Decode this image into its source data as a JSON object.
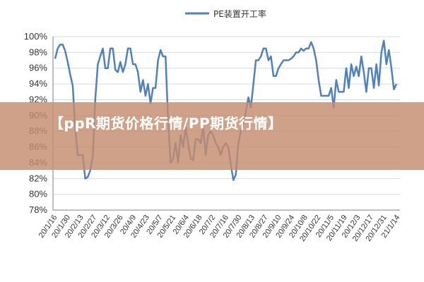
{
  "chart_data": {
    "type": "line",
    "legend": {
      "label": "PE装置开工率",
      "position": "top-center"
    },
    "series_color": "#4F81BD",
    "ylim": [
      78,
      100
    ],
    "yticks": [
      "78%",
      "80%",
      "82%",
      "84%",
      "86%",
      "88%",
      "90%",
      "92%",
      "94%",
      "96%",
      "98%",
      "100%"
    ],
    "x_tick_labels": [
      "20/1/16",
      "20/1/30",
      "20/2/13",
      "20/2/27",
      "20/3/12",
      "20/3/26",
      "20/4/9",
      "20/4/23",
      "20/5/7",
      "20/5/21",
      "20/6/4",
      "20/6/18",
      "20/7/2",
      "20/7/16",
      "20/7/30",
      "20/8/13",
      "20/8/27",
      "20/9/10",
      "20/9/24",
      "20/10/8",
      "20/10/22",
      "20/11/5",
      "20/11/19",
      "20/12/3",
      "20/12/17",
      "20/12/31",
      "21/1/14"
    ],
    "values": [
      97.2,
      98.5,
      99,
      99,
      98.2,
      96.8,
      95.2,
      93.8,
      88.5,
      85,
      85,
      85,
      82,
      82.2,
      83,
      84.8,
      92,
      96.5,
      97.5,
      98.5,
      96,
      96,
      98.5,
      98.5,
      95.8,
      95.5,
      96.8,
      95.5,
      96.5,
      98.5,
      98.5,
      96.5,
      96.5,
      95.5,
      93,
      94.5,
      92.5,
      94,
      91.5,
      93.5,
      93.5,
      97,
      98.3,
      97.5,
      97.5,
      89.5,
      84,
      84.5,
      86.5,
      84,
      87.5,
      86,
      88.5,
      86.5,
      84.5,
      84.3,
      87,
      87,
      86.5,
      88.5,
      85,
      87.5,
      88,
      87.5,
      86.5,
      86,
      85,
      86,
      86.5,
      86,
      83.8,
      81.8,
      82.5,
      86.5,
      88,
      89,
      90.5,
      92.3,
      91,
      94,
      97,
      97,
      97.5,
      98.5,
      98.5,
      97,
      97.5,
      95,
      95,
      96,
      96.5,
      97,
      97,
      97,
      97.2,
      97.5,
      98,
      98,
      98.5,
      98.2,
      98.5,
      98.5,
      99.3,
      98.5,
      97,
      94.5,
      92.5,
      92.5,
      92.5,
      92.5,
      93.5,
      91,
      94.5,
      93,
      93,
      93,
      96,
      93.5,
      96.5,
      95,
      96.2,
      95,
      97.5,
      95.5,
      93,
      96,
      96,
      93.5,
      96.5,
      93.8,
      98,
      99.5,
      96.5,
      98.3,
      96,
      93.3,
      94
    ]
  }
}
